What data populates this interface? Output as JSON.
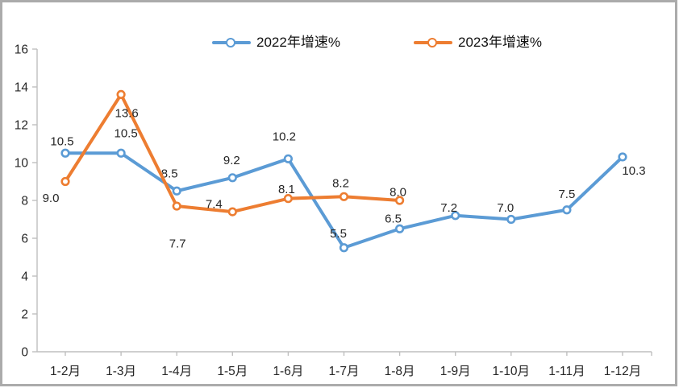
{
  "frame": {
    "border_color": "#ababab",
    "background": "#ffffff"
  },
  "chart_data": {
    "type": "line",
    "title": "",
    "xlabel": "",
    "ylabel": "",
    "categories": [
      "1-2月",
      "1-3月",
      "1-4月",
      "1-5月",
      "1-6月",
      "1-7月",
      "1-8月",
      "1-9月",
      "1-10月",
      "1-11月",
      "1-12月"
    ],
    "series": [
      {
        "name": "2022年增速%",
        "color": "#5B9BD5",
        "values": [
          10.5,
          10.5,
          8.5,
          9.2,
          10.2,
          5.5,
          6.5,
          7.2,
          7.0,
          7.5,
          10.3
        ],
        "labels": [
          "10.5",
          "10.5",
          "8.5",
          "9.2",
          "10.2",
          "5.5",
          "6.5",
          "7.2",
          "7.0",
          "7.5",
          "10.3"
        ]
      },
      {
        "name": "2023年增速%",
        "color": "#ED7D31",
        "values": [
          9.0,
          13.6,
          7.7,
          7.4,
          8.1,
          8.2,
          8.0
        ],
        "labels": [
          "9.0",
          "13.6",
          "7.7",
          "7.4",
          "8.1",
          "8.2",
          "8.0"
        ]
      }
    ],
    "ylim": [
      0,
      16
    ],
    "yticks": [
      0,
      2,
      4,
      6,
      8,
      10,
      12,
      14,
      16
    ],
    "grid": false,
    "legend_position": "top",
    "marker_style": "open-circle",
    "axis_color": "#BFBFBF",
    "text_color": "#262626"
  }
}
